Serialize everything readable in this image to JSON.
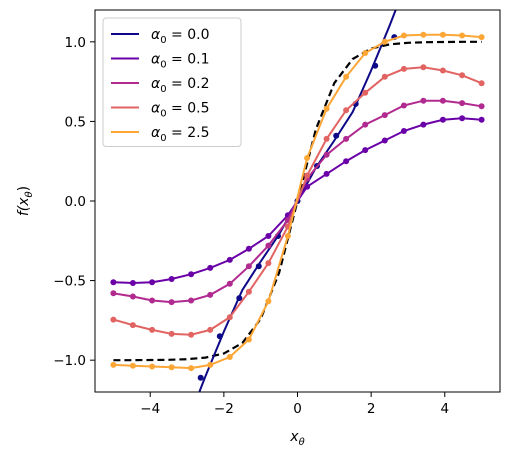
{
  "chart_data": {
    "type": "line",
    "xlabel": "x_θ",
    "ylabel": "f(x_θ)",
    "xlim": [
      -5.5,
      5.5
    ],
    "ylim": [
      -1.2,
      1.2
    ],
    "x_ticks": [
      -4,
      -2,
      0,
      2,
      4
    ],
    "y_ticks": [
      -1.0,
      -0.5,
      0.0,
      0.5,
      1.0
    ],
    "x_tick_labels": [
      "−4",
      "−2",
      "0",
      "2",
      "4"
    ],
    "y_tick_labels": [
      "−1.0",
      "−0.5",
      "0.0",
      "0.5",
      "1.0"
    ],
    "grid": false,
    "legend_position": "top-left",
    "reference_curve": {
      "style": "dashed",
      "color": "#000000",
      "x": [
        -5.0,
        -4.5,
        -4.0,
        -3.5,
        -3.0,
        -2.5,
        -2.0,
        -1.5,
        -1.0,
        -0.5,
        0.0,
        0.5,
        1.0,
        1.5,
        2.0,
        2.5,
        3.0,
        3.5,
        4.0,
        4.5,
        5.0
      ],
      "y": [
        -1.0,
        -1.0,
        -0.999,
        -0.998,
        -0.994,
        -0.984,
        -0.958,
        -0.892,
        -0.741,
        -0.451,
        0.0,
        0.451,
        0.741,
        0.892,
        0.958,
        0.984,
        0.994,
        0.998,
        0.999,
        1.0,
        1.0
      ]
    },
    "series": [
      {
        "name": "α₀ = 0.0",
        "legend_label": "α₀ = 0.0",
        "color": "#0d0887",
        "line_x": [
          -3.5,
          -3.0,
          -2.5,
          -2.0,
          -1.5,
          -1.0,
          -0.5,
          0.0,
          0.5,
          1.0,
          1.5,
          2.0,
          2.5,
          3.0,
          3.5
        ],
        "line_y": [
          -1.7,
          -1.4,
          -1.1,
          -0.82,
          -0.56,
          -0.38,
          -0.21,
          0.0,
          0.21,
          0.38,
          0.56,
          0.82,
          1.1,
          1.4,
          1.7
        ],
        "x": [
          -2.63,
          -2.11,
          -1.58,
          -1.05,
          -0.53,
          0.0,
          0.53,
          1.05,
          1.58,
          2.11,
          2.63
        ],
        "y": [
          -1.11,
          -0.85,
          -0.61,
          -0.41,
          -0.22,
          0.0,
          0.22,
          0.41,
          0.61,
          0.85,
          1.03
        ]
      },
      {
        "name": "α₀ = 0.1",
        "legend_label": "α₀ = 0.1",
        "color": "#6a00a8",
        "x": [
          -5.0,
          -4.47,
          -3.95,
          -3.42,
          -2.89,
          -2.37,
          -1.84,
          -1.32,
          -0.79,
          -0.26,
          0.26,
          0.79,
          1.32,
          1.84,
          2.37,
          2.89,
          3.42,
          3.95,
          4.47,
          5.0
        ],
        "y": [
          -0.51,
          -0.515,
          -0.51,
          -0.49,
          -0.46,
          -0.42,
          -0.37,
          -0.3,
          -0.22,
          -0.09,
          0.09,
          0.17,
          0.25,
          0.32,
          0.38,
          0.44,
          0.48,
          0.51,
          0.52,
          0.51
        ]
      },
      {
        "name": "α₀ = 0.2",
        "legend_label": "α₀ = 0.2",
        "color": "#b12a90",
        "x": [
          -5.0,
          -4.47,
          -3.95,
          -3.42,
          -2.89,
          -2.37,
          -1.84,
          -1.32,
          -0.79,
          -0.26,
          0.26,
          0.79,
          1.32,
          1.84,
          2.37,
          2.89,
          3.42,
          3.95,
          4.47,
          5.0
        ],
        "y": [
          -0.58,
          -0.6,
          -0.625,
          -0.635,
          -0.625,
          -0.59,
          -0.52,
          -0.41,
          -0.28,
          -0.12,
          0.14,
          0.29,
          0.39,
          0.48,
          0.54,
          0.6,
          0.63,
          0.63,
          0.615,
          0.595
        ]
      },
      {
        "name": "α₀ = 0.5",
        "legend_label": "α₀ = 0.5",
        "color": "#e16462",
        "x": [
          -5.0,
          -4.47,
          -3.95,
          -3.42,
          -2.89,
          -2.37,
          -1.84,
          -1.32,
          -0.79,
          -0.26,
          0.26,
          0.79,
          1.32,
          1.84,
          2.37,
          2.89,
          3.42,
          3.95,
          4.47,
          5.0
        ],
        "y": [
          -0.745,
          -0.78,
          -0.81,
          -0.835,
          -0.84,
          -0.81,
          -0.73,
          -0.57,
          -0.39,
          -0.16,
          0.16,
          0.39,
          0.57,
          0.68,
          0.78,
          0.83,
          0.84,
          0.82,
          0.79,
          0.74
        ]
      },
      {
        "name": "α₀ = 2.5",
        "legend_label": "α₀ = 2.5",
        "color": "#fca636",
        "x": [
          -5.0,
          -4.47,
          -3.95,
          -3.42,
          -2.89,
          -2.37,
          -1.84,
          -1.32,
          -0.79,
          -0.26,
          0.26,
          0.79,
          1.32,
          1.84,
          2.37,
          2.89,
          3.42,
          3.95,
          4.47,
          5.0
        ],
        "y": [
          -1.03,
          -1.035,
          -1.04,
          -1.045,
          -1.05,
          -1.03,
          -0.98,
          -0.87,
          -0.63,
          -0.22,
          0.27,
          0.58,
          0.78,
          0.93,
          1.0,
          1.04,
          1.045,
          1.045,
          1.04,
          1.03
        ]
      }
    ]
  }
}
